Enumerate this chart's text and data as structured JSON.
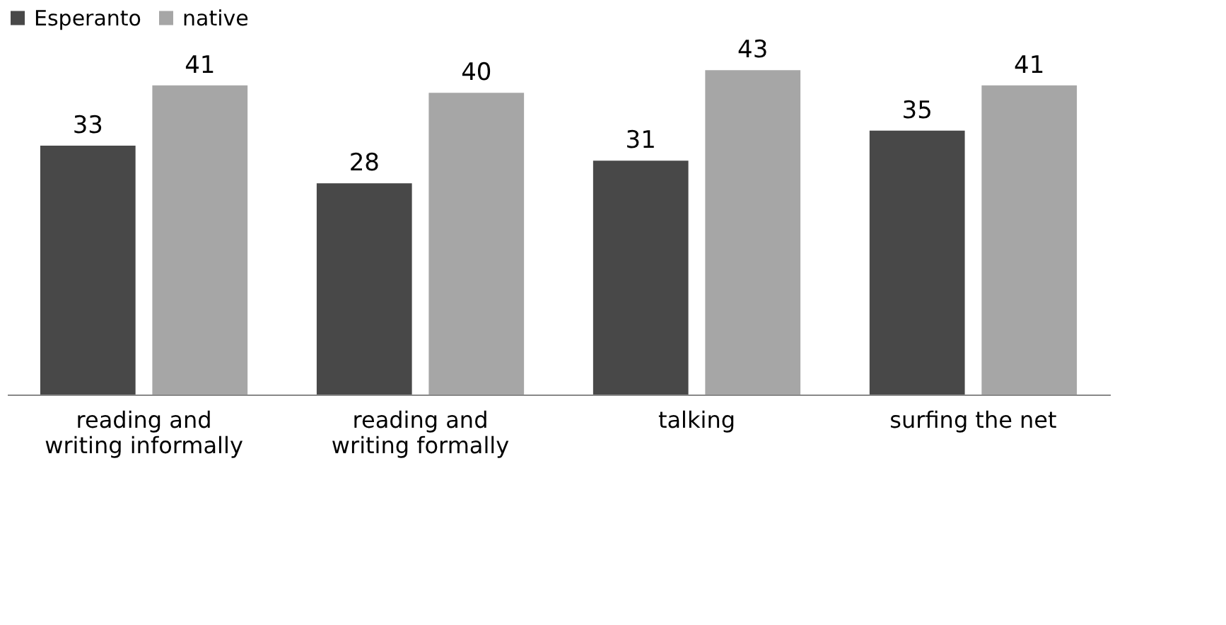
{
  "chart_data": {
    "type": "bar",
    "categories": [
      "reading and writing informally",
      "reading and writing formally",
      "talking",
      "surfing the net"
    ],
    "series": [
      {
        "name": "Esperanto",
        "color": "#484848",
        "values": [
          33,
          28,
          31,
          35
        ]
      },
      {
        "name": "native",
        "color": "#a6a6a6",
        "values": [
          41,
          40,
          43,
          41
        ]
      }
    ],
    "data_labels": true,
    "legend": "top",
    "grid": false
  }
}
